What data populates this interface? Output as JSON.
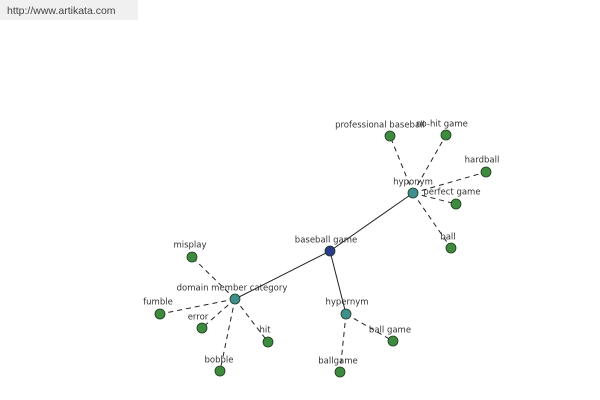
{
  "header": {
    "url": "http://www.artikata.com"
  },
  "nodes": [
    {
      "label": "baseball game"
    },
    {
      "label": "hyponym"
    },
    {
      "label": "domain member category"
    },
    {
      "label": "hypernym"
    },
    {
      "label": "professional baseball"
    },
    {
      "label": "no-hit game"
    },
    {
      "label": "hardball"
    },
    {
      "label": "perfect game"
    },
    {
      "label": "ball"
    },
    {
      "label": "misplay"
    },
    {
      "label": "fumble"
    },
    {
      "label": "error"
    },
    {
      "label": "hit"
    },
    {
      "label": "bobble"
    },
    {
      "label": "ball game"
    },
    {
      "label": "ballgame"
    }
  ]
}
